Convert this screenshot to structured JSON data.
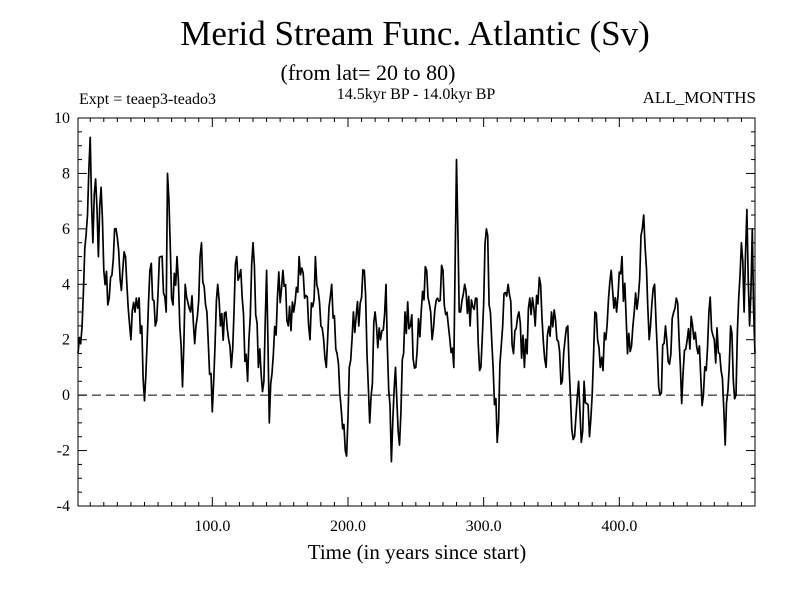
{
  "chart_data": {
    "type": "line",
    "title": "Merid Stream Func. Atlantic (Sv)",
    "subtitle": "(from lat= 20 to 80)",
    "experiment": "Expt = teaep3-teado3",
    "period": "14.5kyr BP - 14.0kyr BP",
    "season": "ALL_MONTHS",
    "xlabel": "Time (in years since start)",
    "ylabel": "",
    "xlim": [
      1,
      500
    ],
    "ylim": [
      -4,
      10
    ],
    "xticks": [
      100,
      200,
      300,
      400
    ],
    "xtick_labels": [
      "100.0",
      "200.0",
      "300.0",
      "400.0"
    ],
    "yticks": [
      -4,
      -2,
      0,
      2,
      4,
      6,
      8,
      10
    ],
    "ytick_labels": [
      "-4",
      "-2",
      "0",
      "2",
      "4",
      "6",
      "8",
      "10"
    ],
    "reference_line": {
      "y": 0,
      "style": "dashed"
    },
    "series": [
      {
        "name": "Merid Stream Func. Atlantic",
        "anchors_x": [
          1,
          4,
          8,
          10,
          12,
          14,
          16,
          18,
          20,
          24,
          28,
          32,
          36,
          40,
          44,
          48,
          50,
          54,
          58,
          62,
          66,
          67,
          70,
          74,
          78,
          80,
          84,
          88,
          92,
          96,
          100,
          104,
          106,
          110,
          114,
          118,
          122,
          126,
          130,
          134,
          138,
          140,
          142,
          145,
          148,
          152,
          156,
          160,
          164,
          168,
          172,
          176,
          180,
          184,
          188,
          192,
          195,
          199,
          201,
          204,
          208,
          212,
          216,
          220,
          224,
          228,
          232,
          235,
          238,
          242,
          246,
          250,
          254,
          258,
          262,
          266,
          270,
          274,
          278,
          280,
          282,
          286,
          290,
          294,
          298,
          302,
          305,
          310,
          314,
          318,
          322,
          326,
          330,
          334,
          338,
          342,
          346,
          350,
          354,
          358,
          362,
          366,
          370,
          372,
          374,
          378,
          382,
          386,
          390,
          394,
          398,
          402,
          406,
          410,
          414,
          418,
          422,
          426,
          430,
          434,
          438,
          442,
          446,
          450,
          454,
          458,
          462,
          466,
          470,
          474,
          478,
          482,
          486,
          488,
          490,
          492,
          494,
          496,
          498,
          500
        ],
        "anchors_y": [
          1.5,
          2.5,
          6.5,
          9.3,
          5.5,
          7.8,
          5.0,
          7.5,
          4.5,
          3.5,
          6.0,
          4.2,
          5.0,
          2.0,
          3.5,
          2.5,
          -0.2,
          4.5,
          2.5,
          5.0,
          3.0,
          8.0,
          3.5,
          5.0,
          0.3,
          4.0,
          3.0,
          2.5,
          5.5,
          3.0,
          -0.6,
          4.0,
          2.5,
          3.0,
          1.0,
          5.0,
          3.5,
          0.5,
          5.5,
          1.0,
          0.5,
          4.5,
          -1.0,
          1.5,
          3.5,
          4.5,
          2.5,
          3.0,
          5.0,
          3.5,
          2.0,
          5.0,
          2.5,
          1.0,
          4.0,
          1.5,
          -0.5,
          -2.2,
          1.0,
          3.0,
          2.5,
          4.5,
          -1.0,
          3.0,
          2.0,
          4.0,
          -2.4,
          1.0,
          -1.8,
          3.0,
          2.5,
          1.0,
          3.0,
          4.5,
          2.0,
          3.5,
          4.5,
          2.5,
          1.0,
          8.5,
          3.0,
          4.0,
          2.5,
          3.5,
          1.0,
          6.0,
          3.0,
          -1.7,
          2.5,
          4.0,
          1.5,
          3.0,
          1.0,
          3.5,
          2.5,
          4.0,
          1.0,
          3.0,
          2.0,
          0.5,
          2.5,
          -1.6,
          0.5,
          -1.7,
          0.5,
          -1.5,
          3.0,
          1.0,
          2.0,
          4.5,
          3.0,
          5.0,
          1.5,
          2.5,
          3.5,
          6.5,
          2.0,
          4.0,
          0.0,
          2.5,
          1.5,
          3.5,
          -0.3,
          2.0,
          2.5,
          1.5,
          0.0,
          3.0,
          2.0,
          1.5,
          -1.8,
          2.5,
          0.0,
          3.5,
          5.5,
          3.0,
          6.7,
          2.5,
          6.0,
          1.5
        ]
      }
    ]
  }
}
